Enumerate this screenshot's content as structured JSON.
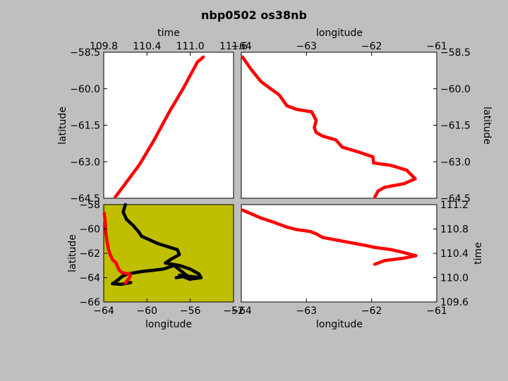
{
  "figure": {
    "title": "nbp0502 os38nb",
    "background": "#bfbfbf"
  },
  "chart_data": [
    {
      "id": "lat_vs_time",
      "type": "scatter",
      "xlabel": "time",
      "ylabel": "latitude",
      "xlim": [
        109.8,
        111.6
      ],
      "ylim": [
        -64.5,
        -58.5
      ],
      "xticks": [
        "109.8",
        "110.4",
        "111.0",
        "111.6"
      ],
      "yticks": [
        "−58.5",
        "−60.0",
        "−61.5",
        "−63.0",
        "−64.5"
      ],
      "color": "#ff0000",
      "series": [
        {
          "x": [
            109.96,
            110.1,
            110.3,
            110.5,
            110.7,
            110.9,
            111.1,
            111.18
          ],
          "y": [
            -64.45,
            -63.9,
            -63.1,
            -62.1,
            -61.0,
            -60.0,
            -58.9,
            -58.7
          ]
        }
      ]
    },
    {
      "id": "lat_vs_lon",
      "type": "scatter",
      "xlabel": "longitude",
      "ylabel": "latitude",
      "xlim": [
        -64,
        -61
      ],
      "ylim": [
        -64.5,
        -58.5
      ],
      "xticks": [
        "−64",
        "−63",
        "−62",
        "−61"
      ],
      "yticks": [
        "−58.5",
        "−60.0",
        "−61.5",
        "−63.0",
        "−64.5"
      ],
      "color": "#ff0000",
      "series": [
        {
          "x": [
            -63.98,
            -63.85,
            -63.7,
            -63.55,
            -63.42,
            -63.3,
            -63.15,
            -62.92,
            -62.85,
            -62.88,
            -62.85,
            -62.75,
            -62.55,
            -62.45,
            -62.2,
            -61.98,
            -61.97,
            -61.7,
            -61.46,
            -61.33,
            -61.5,
            -61.8,
            -61.9,
            -61.95
          ],
          "y": [
            -58.7,
            -59.2,
            -59.7,
            -60.0,
            -60.25,
            -60.7,
            -60.85,
            -60.95,
            -61.3,
            -61.6,
            -61.8,
            -61.95,
            -62.1,
            -62.4,
            -62.6,
            -62.8,
            -63.05,
            -63.15,
            -63.35,
            -63.7,
            -63.9,
            -64.05,
            -64.2,
            -64.45
          ]
        }
      ]
    },
    {
      "id": "map",
      "type": "scatter",
      "xlabel": "longitude",
      "ylabel": "latitude",
      "xlim": [
        -64,
        -52
      ],
      "ylim": [
        -66,
        -58
      ],
      "xticks": [
        "−64",
        "−60",
        "−56",
        "−52"
      ],
      "yticks": [
        "−58",
        "−60",
        "−62",
        "−64",
        "−66"
      ],
      "background": "#bfbf00",
      "series": [
        {
          "color": "#000000",
          "x": [
            -62.0,
            -62.2,
            -61.9,
            -61.3,
            -60.8,
            -60.5,
            -59.0,
            -57.2,
            -57.0,
            -57.8,
            -58.3,
            -57.0,
            -56.0,
            -55.2,
            -55.0,
            -56.0,
            -57.5,
            -58.5,
            -60.5,
            -61.8,
            -62.3,
            -62.7,
            -63.0,
            -63.2,
            -62.4,
            -61.5
          ],
          "y": [
            -58.0,
            -58.6,
            -59.2,
            -59.7,
            -60.2,
            -60.6,
            -61.2,
            -61.7,
            -62.1,
            -62.5,
            -62.8,
            -63.0,
            -63.3,
            -63.7,
            -64.0,
            -64.05,
            -63.0,
            -63.3,
            -63.5,
            -63.7,
            -63.9,
            -64.2,
            -64.4,
            -64.5,
            -64.55,
            -64.4
          ]
        },
        {
          "color": "#000000",
          "x": [
            -57.3,
            -56.6,
            -55.8,
            -55.0,
            -57.0,
            -56.0
          ],
          "y": [
            -64.0,
            -63.9,
            -64.1,
            -64.0,
            -63.8,
            -64.15
          ]
        },
        {
          "color": "#ff0000",
          "x": [
            -63.95,
            -63.85,
            -63.8,
            -63.7,
            -63.55,
            -63.45,
            -63.2,
            -62.85,
            -62.72,
            -62.55,
            -62.3,
            -61.6,
            -61.55,
            -61.7,
            -62.0
          ],
          "y": [
            -58.7,
            -59.5,
            -60.3,
            -61.0,
            -61.7,
            -62.0,
            -62.5,
            -62.8,
            -63.1,
            -63.4,
            -63.6,
            -63.7,
            -63.9,
            -64.1,
            -64.45
          ]
        }
      ]
    },
    {
      "id": "time_vs_lon",
      "type": "scatter",
      "xlabel": "longitude",
      "ylabel": "time",
      "xlim": [
        -64,
        -61
      ],
      "ylim": [
        109.6,
        111.2
      ],
      "xticks": [
        "−64",
        "−63",
        "−62",
        "−61"
      ],
      "yticks": [
        "111.2",
        "110.8",
        "110.4",
        "110.0",
        "109.6"
      ],
      "color": "#ff0000",
      "series": [
        {
          "x": [
            -63.98,
            -63.85,
            -63.7,
            -63.5,
            -63.3,
            -63.15,
            -62.95,
            -62.85,
            -62.75,
            -62.55,
            -62.3,
            -62.05,
            -61.97,
            -61.7,
            -61.5,
            -61.32,
            -61.5,
            -61.8,
            -61.95
          ],
          "y": [
            111.11,
            111.05,
            110.98,
            110.91,
            110.83,
            110.79,
            110.76,
            110.72,
            110.66,
            110.62,
            110.57,
            110.52,
            110.5,
            110.46,
            110.41,
            110.36,
            110.32,
            110.28,
            110.22
          ]
        }
      ]
    }
  ]
}
